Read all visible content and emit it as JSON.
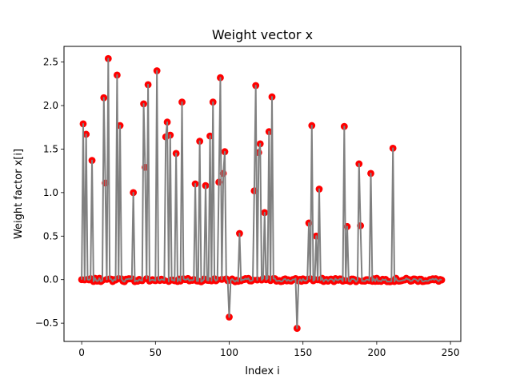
{
  "chart_data": {
    "type": "scatter",
    "title": "Weight vector x",
    "xlabel": "Index i",
    "ylabel": "Weight factor x[i]",
    "xlim": [
      -12,
      257
    ],
    "ylim": [
      -0.71,
      2.68
    ],
    "xticks": [
      0,
      50,
      100,
      150,
      200,
      250
    ],
    "yticks": [
      -0.5,
      0.0,
      0.5,
      1.0,
      1.5,
      2.0,
      2.5
    ],
    "xtick_labels": [
      "0",
      "50",
      "100",
      "150",
      "200",
      "250"
    ],
    "ytick_labels": [
      "−0.5",
      "0.0",
      "0.5",
      "1.0",
      "1.5",
      "2.0",
      "2.5"
    ],
    "grid": false,
    "legend": "none",
    "marker_color": "#ff0000",
    "line_color": "#808080",
    "n_points": 245,
    "baseline": 0.0,
    "baseline_noise": 0.02,
    "spikes": [
      {
        "i": 1,
        "y": 1.79
      },
      {
        "i": 3,
        "y": 1.67
      },
      {
        "i": 7,
        "y": 1.37
      },
      {
        "i": 15,
        "y": 2.09
      },
      {
        "i": 16,
        "y": 1.11
      },
      {
        "i": 18,
        "y": 2.54
      },
      {
        "i": 24,
        "y": 2.35
      },
      {
        "i": 26,
        "y": 1.77
      },
      {
        "i": 35,
        "y": 1.0
      },
      {
        "i": 42,
        "y": 2.02
      },
      {
        "i": 43,
        "y": 1.29
      },
      {
        "i": 45,
        "y": 2.24
      },
      {
        "i": 51,
        "y": 2.4
      },
      {
        "i": 57,
        "y": 1.64
      },
      {
        "i": 58,
        "y": 1.81
      },
      {
        "i": 60,
        "y": 1.66
      },
      {
        "i": 64,
        "y": 1.45
      },
      {
        "i": 68,
        "y": 2.04
      },
      {
        "i": 77,
        "y": 1.1
      },
      {
        "i": 80,
        "y": 1.59
      },
      {
        "i": 84,
        "y": 1.08
      },
      {
        "i": 87,
        "y": 1.65
      },
      {
        "i": 89,
        "y": 2.04
      },
      {
        "i": 93,
        "y": 1.12
      },
      {
        "i": 94,
        "y": 2.32
      },
      {
        "i": 96,
        "y": 1.22
      },
      {
        "i": 97,
        "y": 1.47
      },
      {
        "i": 100,
        "y": -0.43
      },
      {
        "i": 107,
        "y": 0.53
      },
      {
        "i": 117,
        "y": 1.02
      },
      {
        "i": 118,
        "y": 2.23
      },
      {
        "i": 120,
        "y": 1.46
      },
      {
        "i": 121,
        "y": 1.56
      },
      {
        "i": 124,
        "y": 0.77
      },
      {
        "i": 127,
        "y": 1.7
      },
      {
        "i": 129,
        "y": 2.1
      },
      {
        "i": 146,
        "y": -0.56
      },
      {
        "i": 154,
        "y": 0.65
      },
      {
        "i": 156,
        "y": 1.77
      },
      {
        "i": 159,
        "y": 0.5
      },
      {
        "i": 161,
        "y": 1.04
      },
      {
        "i": 178,
        "y": 1.76
      },
      {
        "i": 180,
        "y": 0.61
      },
      {
        "i": 188,
        "y": 1.33
      },
      {
        "i": 189,
        "y": 0.62
      },
      {
        "i": 196,
        "y": 1.22
      },
      {
        "i": 211,
        "y": 1.51
      }
    ]
  }
}
